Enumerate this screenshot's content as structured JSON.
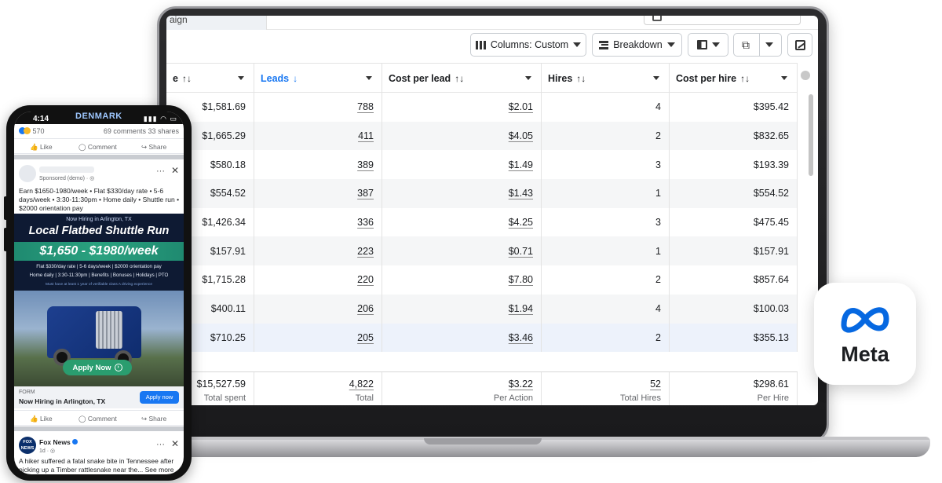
{
  "laptop": {
    "partial_tab": "aign",
    "toolbar": {
      "columns_label": "Columns: Custom",
      "breakdown_label": "Breakdown"
    },
    "headers": [
      {
        "label": "e",
        "sort": "↑↓"
      },
      {
        "label": "Leads",
        "sort": "↓"
      },
      {
        "label": "Cost per lead",
        "sort": "↑↓"
      },
      {
        "label": "Hires",
        "sort": "↑↓"
      },
      {
        "label": "Cost per hire",
        "sort": "↑↓"
      }
    ],
    "rows": [
      {
        "spent": "$1,581.69",
        "leads": "788",
        "cpl": "$2.01",
        "hires": "4",
        "cph": "$395.42"
      },
      {
        "spent": "$1,665.29",
        "leads": "411",
        "cpl": "$4.05",
        "hires": "2",
        "cph": "$832.65"
      },
      {
        "spent": "$580.18",
        "leads": "389",
        "cpl": "$1.49",
        "hires": "3",
        "cph": "$193.39"
      },
      {
        "spent": "$554.52",
        "leads": "387",
        "cpl": "$1.43",
        "hires": "1",
        "cph": "$554.52"
      },
      {
        "spent": "$1,426.34",
        "leads": "336",
        "cpl": "$4.25",
        "hires": "3",
        "cph": "$475.45"
      },
      {
        "spent": "$157.91",
        "leads": "223",
        "cpl": "$0.71",
        "hires": "1",
        "cph": "$157.91"
      },
      {
        "spent": "$1,715.28",
        "leads": "220",
        "cpl": "$7.80",
        "hires": "2",
        "cph": "$857.64"
      },
      {
        "spent": "$400.11",
        "leads": "206",
        "cpl": "$1.94",
        "hires": "4",
        "cph": "$100.03"
      },
      {
        "spent": "$710.25",
        "leads": "205",
        "cpl": "$3.46",
        "hires": "2",
        "cph": "$355.13"
      }
    ],
    "totals": {
      "spent": "$15,527.59",
      "spent_label": "Total spent",
      "leads": "4,822",
      "leads_label": "Total",
      "cpl": "$3.22",
      "cpl_label": "Per Action",
      "hires": "52",
      "hires_label": "Total Hires",
      "cph": "$298.61",
      "cph_label": "Per Hire"
    }
  },
  "phone": {
    "time": "4:14",
    "banner": "DENMARK",
    "status_icons": "▮▮▮ ◠ ▭",
    "reaction_count": "570",
    "comments": "69 comments",
    "shares": "33 shares",
    "like": "Like",
    "comment": "Comment",
    "share": "Share",
    "sponsored": "Sponsored (demo) · ◎",
    "post_text": "Earn $1650-1980/week • Flat $330/day rate • 5-6 days/week • 3:30-11:30pm • Home daily • Shuttle run • $2000 orientation pay",
    "creative": {
      "hiring": "Now Hiring in Arlington, TX",
      "title": "Local Flatbed Shuttle Run",
      "pay": "$1,650 - $1980/week",
      "line1": "Flat $330/day rate  |  5-6 days/week  |  $2000 orientation pay",
      "line2": "Home daily  |  3:30-11:30pm  |  Benefits  |  Bonuses  |  Holidays  |  PTO",
      "tiny": "Must have at least 1 year of verifiable class A driving experience",
      "apply": "Apply Now"
    },
    "form_label": "FORM",
    "form_title": "Now Hiring in Arlington, TX",
    "apply_button": "Apply now",
    "fox": {
      "logo": "FOX NEWS",
      "name": "Fox News",
      "time": "1d · ◎",
      "text": "A hiker suffered a fatal snake bite in Tennessee after picking up a Timber rattlesnake near the... See more"
    }
  },
  "meta": {
    "wordmark": "Meta",
    "brand_color": "#0668E1"
  }
}
